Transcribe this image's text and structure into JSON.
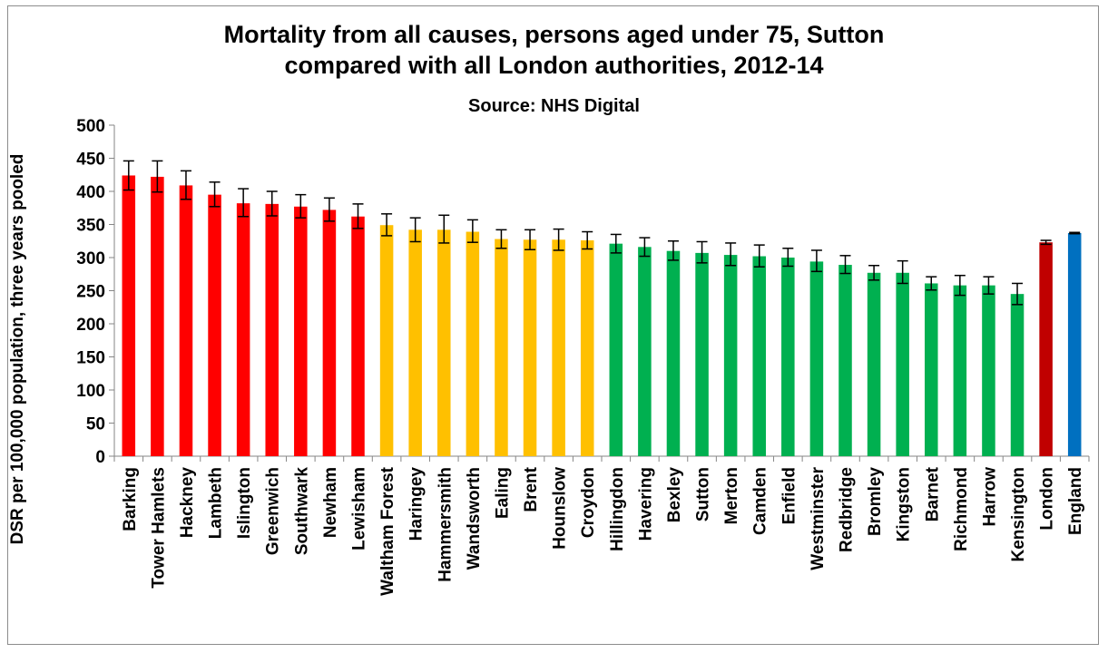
{
  "chart_data": {
    "type": "bar",
    "title_lines": [
      "Mortality from all causes, persons aged under 75, Sutton",
      "compared with all London authorities, 2012-14"
    ],
    "subtitle": "Source: NHS Digital",
    "ylabel": "DSR per 100,000 population, three years pooled",
    "xlabel": "",
    "ylim": [
      0,
      500
    ],
    "yticks": [
      0,
      50,
      100,
      150,
      200,
      250,
      300,
      350,
      400,
      450,
      500
    ],
    "grid": false,
    "legend": "none",
    "error_bars": true,
    "colors": {
      "red": "#ff0000",
      "amber": "#ffc000",
      "green": "#00b050",
      "london": "#c00000",
      "england": "#0070c0"
    },
    "categories": [
      "Barking",
      "Tower Hamlets",
      "Hackney",
      "Lambeth",
      "Islington",
      "Greenwich",
      "Southwark",
      "Newham",
      "Lewisham",
      "Waltham Forest",
      "Haringey",
      "Hammersmith",
      "Wandsworth",
      "Ealing",
      "Brent",
      "Hounslow",
      "Croydon",
      "Hillingdon",
      "Havering",
      "Bexley",
      "Sutton",
      "Merton",
      "Camden",
      "Enfield",
      "Westminster",
      "Redbridge",
      "Bromley",
      "Kingston",
      "Barnet",
      "Richmond",
      "Harrow",
      "Kensington",
      "London",
      "England"
    ],
    "values": [
      424,
      422,
      409,
      395,
      382,
      381,
      377,
      372,
      362,
      349,
      342,
      342,
      339,
      328,
      327,
      327,
      326,
      321,
      316,
      310,
      307,
      304,
      302,
      300,
      294,
      289,
      277,
      277,
      261,
      258,
      258,
      245,
      323,
      337
    ],
    "error_low": [
      402,
      399,
      388,
      377,
      362,
      363,
      360,
      355,
      344,
      333,
      324,
      322,
      323,
      314,
      312,
      311,
      313,
      307,
      302,
      296,
      292,
      288,
      286,
      287,
      279,
      276,
      266,
      261,
      251,
      243,
      245,
      229,
      320,
      336
    ],
    "error_high": [
      446,
      446,
      431,
      414,
      404,
      400,
      395,
      390,
      381,
      366,
      360,
      364,
      357,
      342,
      342,
      343,
      339,
      335,
      330,
      325,
      324,
      322,
      319,
      314,
      311,
      303,
      288,
      295,
      271,
      273,
      271,
      261,
      326,
      338
    ],
    "bar_colors": [
      "red",
      "red",
      "red",
      "red",
      "red",
      "red",
      "red",
      "red",
      "red",
      "amber",
      "amber",
      "amber",
      "amber",
      "amber",
      "amber",
      "amber",
      "amber",
      "green",
      "green",
      "green",
      "green",
      "green",
      "green",
      "green",
      "green",
      "green",
      "green",
      "green",
      "green",
      "green",
      "green",
      "green",
      "london",
      "england"
    ]
  }
}
